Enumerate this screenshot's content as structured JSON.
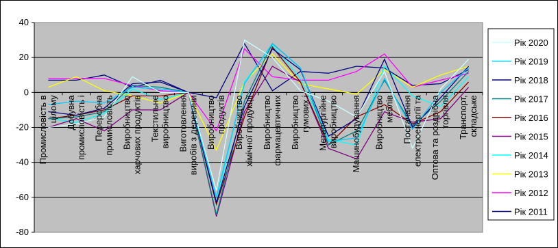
{
  "chart_data": {
    "type": "line",
    "title": "",
    "xlabel": "",
    "ylabel": "",
    "ylim": [
      -80,
      40
    ],
    "yticks": [
      -80,
      -60,
      -40,
      -20,
      0,
      20,
      40
    ],
    "grid": true,
    "legend_position": "right",
    "plot_background": "#c0c0c0",
    "categories": [
      [
        "Промисловість в",
        "цілому"
      ],
      [
        "Добувна",
        "промисловість і"
      ],
      [
        "Переробна",
        "промисловість"
      ],
      [
        "Виробництво",
        "харчових продуктів"
      ],
      [
        "Текстильне",
        "виробництво"
      ],
      [
        "Виготовлення",
        "виробів з деревини"
      ],
      [
        "Виробництво",
        "продуктів"
      ],
      [
        "Виробництво",
        "хімічної продукції"
      ],
      [
        "Виробництво",
        "фармацевтичних"
      ],
      [
        "Виробництво",
        "гумових і"
      ],
      [
        "Металургійне",
        "виробництво"
      ],
      [
        "Машинобудування"
      ],
      [
        "Виробництво",
        "меблів"
      ],
      [
        "Постачання",
        "електроенергії та"
      ],
      [
        "Оптова та роздрібна",
        "торгівля"
      ],
      [
        "Транспорт,",
        "складське"
      ]
    ],
    "series": [
      {
        "name": "Рік 2020",
        "color": "#ccffff",
        "values": [
          -20,
          -18,
          -14,
          9,
          0,
          0,
          -56,
          30,
          20,
          1,
          -5,
          -14,
          12,
          -32,
          2,
          19
        ]
      },
      {
        "name": "Рік 2019",
        "color": "#00ccff",
        "values": [
          -7,
          -5,
          -6,
          3,
          2,
          0,
          -60,
          5,
          28,
          14,
          -28,
          -26,
          8,
          -21,
          0,
          14
        ]
      },
      {
        "name": "Рік 2018",
        "color": "#000080",
        "values": [
          -11,
          -13,
          -9,
          5,
          6,
          0,
          -63,
          -8,
          25,
          13,
          -25,
          -15,
          19,
          -20,
          -3,
          15
        ]
      },
      {
        "name": "Рік 2017",
        "color": "#008080",
        "values": [
          -15,
          -14,
          -11,
          4,
          3,
          0,
          -70,
          -5,
          28,
          14,
          -30,
          -22,
          7,
          -19,
          -5,
          12
        ]
      },
      {
        "name": "Рік 2016",
        "color": "#800000",
        "values": [
          -15,
          -13,
          -10,
          -2,
          -2,
          0,
          -64,
          -14,
          26,
          6,
          -30,
          -14,
          -7,
          -18,
          -11,
          6
        ]
      },
      {
        "name": "Рік 2015",
        "color": "#800080",
        "values": [
          -20,
          -15,
          -22,
          -10,
          -10,
          0,
          -71,
          -11,
          15,
          6,
          -32,
          -38,
          -11,
          -17,
          -15,
          3
        ]
      },
      {
        "name": "Рік 2014",
        "color": "#00ffff",
        "values": [
          -15,
          -17,
          -12,
          2,
          -4,
          0,
          -63,
          6,
          27,
          8,
          -27,
          -30,
          15,
          -2,
          -8,
          9
        ]
      },
      {
        "name": "Рік 2013",
        "color": "#ffff00",
        "values": [
          3,
          9,
          1,
          -2,
          -6,
          0,
          -33,
          6,
          22,
          5,
          2,
          -1,
          13,
          3,
          10,
          15
        ]
      },
      {
        "name": "Рік 2012",
        "color": "#ff00ff",
        "values": [
          8,
          8,
          8,
          4,
          1,
          0,
          -22,
          25,
          9,
          7,
          7,
          12,
          22,
          3,
          7,
          11
        ]
      },
      {
        "name": "Рік 2011",
        "color": "#000080",
        "values": [
          7,
          7,
          10,
          3,
          7,
          0,
          -3,
          28,
          1,
          12,
          11,
          15,
          14,
          4,
          5,
          13
        ]
      }
    ]
  }
}
